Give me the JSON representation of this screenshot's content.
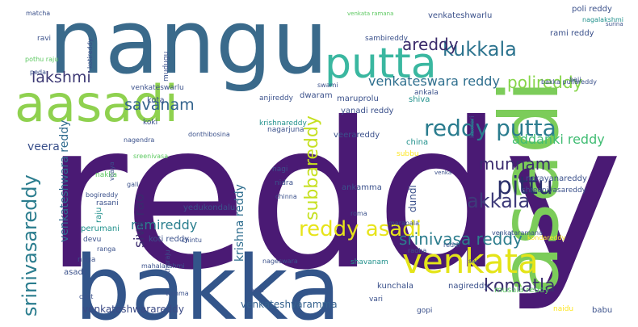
{
  "cloud": {
    "palette": [
      "#440154",
      "#3b528b",
      "#21918c",
      "#5ec962",
      "#fde725"
    ],
    "words": [
      {
        "text": "reddy",
        "color": "#4a1a74"
      },
      {
        "text": "nangu",
        "color": "#3a6a8b"
      },
      {
        "text": "bakka",
        "color": "#33558a"
      },
      {
        "text": "aasadi",
        "color": "#8fd14f"
      },
      {
        "text": "putta",
        "color": "#3ab7a0"
      },
      {
        "text": "asadi",
        "color": "#7ccc5a"
      },
      {
        "text": "venkata",
        "color": "#e4e419"
      },
      {
        "text": "reddy asadi",
        "color": "#e7e41a"
      },
      {
        "text": "lakshmi",
        "color": "#3e3a75"
      },
      {
        "text": "kukkala",
        "color": "#2c738e"
      },
      {
        "text": "reddy putta",
        "color": "#2a7c8e"
      },
      {
        "text": "areddy",
        "color": "#3a2a6a"
      },
      {
        "text": "venkateswara reddy",
        "color": "#2f6f8e"
      },
      {
        "text": "srinivasareddy",
        "color": "#2b7d8e"
      },
      {
        "text": "venkateshwara reddy",
        "color": "#2f6b8e"
      },
      {
        "text": "savanam",
        "color": "#33638d"
      },
      {
        "text": "subbareddy",
        "color": "#c6e020"
      },
      {
        "text": "srinivasa reddy",
        "color": "#2c7d8d"
      },
      {
        "text": "pittu",
        "color": "#2a2f6a"
      },
      {
        "text": "munnam",
        "color": "#3a2a6e"
      },
      {
        "text": "akkala",
        "color": "#3e3b7a"
      },
      {
        "text": "komatla",
        "color": "#3a2f6d"
      },
      {
        "text": "polireddy",
        "color": "#86d549"
      },
      {
        "text": "addanki reddy",
        "color": "#3fbc72"
      },
      {
        "text": "ramireddy",
        "color": "#2a7f8e"
      },
      {
        "text": "siva rao",
        "color": "#3a2a6e"
      },
      {
        "text": "krishna reddy",
        "color": "#2e6d8e"
      },
      {
        "text": "venkateshwarareddy",
        "color": "#3b4a85"
      },
      {
        "text": "venkateshvaramma",
        "color": "#34618d"
      },
      {
        "text": "venkateshwarlu",
        "color": "#3b518b"
      },
      {
        "text": "venkateswarlu",
        "color": "#3b518b"
      },
      {
        "text": "rami reddy",
        "color": "#3b518b"
      },
      {
        "text": "poli reddy",
        "color": "#3b518b"
      },
      {
        "text": "nagalakshmi",
        "color": "#21918c"
      },
      {
        "text": "koti reddy",
        "color": "#3b518b"
      },
      {
        "text": "kota",
        "color": "#3b518b"
      },
      {
        "text": "anjireddy",
        "color": "#3b518b"
      },
      {
        "text": "maruprolu",
        "color": "#3b518b"
      },
      {
        "text": "dwaram",
        "color": "#3b518b"
      },
      {
        "text": "yanadi reddy",
        "color": "#3b518b"
      },
      {
        "text": "shiva",
        "color": "#21918c"
      },
      {
        "text": "china",
        "color": "#21918c"
      },
      {
        "text": "veerareddy",
        "color": "#3b518b"
      },
      {
        "text": "krishnareddy",
        "color": "#21918c"
      },
      {
        "text": "nagi",
        "color": "#3b518b"
      },
      {
        "text": "nidra",
        "color": "#3b518b"
      },
      {
        "text": "rasani",
        "color": "#3b518b"
      },
      {
        "text": "raju",
        "color": "#21918c"
      },
      {
        "text": "nakka",
        "color": "#5ec962"
      },
      {
        "text": "perumani",
        "color": "#21918c"
      },
      {
        "text": "devu",
        "color": "#3b518b"
      },
      {
        "text": "yedukondalu",
        "color": "#3b518b"
      },
      {
        "text": "ankamma",
        "color": "#3b518b"
      },
      {
        "text": "dundi",
        "color": "#3b518b"
      },
      {
        "text": "marapala",
        "color": "#3b518b"
      },
      {
        "text": "narayanareddy",
        "color": "#3b518b"
      },
      {
        "text": "shreenivasareddy",
        "color": "#3b518b"
      },
      {
        "text": "kondareddy",
        "color": "#fde725"
      },
      {
        "text": "reddi",
        "color": "#3b518b"
      },
      {
        "text": "shavanam",
        "color": "#21918c"
      },
      {
        "text": "kunchala",
        "color": "#3b518b"
      },
      {
        "text": "nagireddy",
        "color": "#3b518b"
      },
      {
        "text": "musala reddy",
        "color": "#5ec962"
      },
      {
        "text": "vari",
        "color": "#3b518b"
      },
      {
        "text": "anki",
        "color": "#3b518b"
      },
      {
        "text": "tumma",
        "color": "#3b518b"
      },
      {
        "text": "asadi",
        "color": "#3b518b"
      },
      {
        "text": "naidu",
        "color": "#fde725"
      },
      {
        "text": "babu",
        "color": "#3b518b"
      },
      {
        "text": "gopi",
        "color": "#3b518b"
      },
      {
        "text": "veera",
        "color": "#3b518b"
      },
      {
        "text": "ravi",
        "color": "#3b518b"
      },
      {
        "text": "matcha",
        "color": "#3b518b"
      },
      {
        "text": "sambireddy",
        "color": "#3b518b"
      },
      {
        "text": "venkata ramana",
        "color": "#5ec962"
      },
      {
        "text": "ankala",
        "color": "#3b518b"
      },
      {
        "text": "bakka pullareddy",
        "color": "#3b518b"
      },
      {
        "text": "pothu raju",
        "color": "#5ec962"
      },
      {
        "text": "kotireddy",
        "color": "#3b518b"
      },
      {
        "text": "mudugu",
        "color": "#3b518b"
      },
      {
        "text": "nagarjuna",
        "color": "#3b518b"
      },
      {
        "text": "koki",
        "color": "#3b518b"
      },
      {
        "text": "donthibosina",
        "color": "#3b518b"
      },
      {
        "text": "nagendra",
        "color": "#3b518b"
      },
      {
        "text": "sreenivasa",
        "color": "#5ec962"
      },
      {
        "text": "subbu",
        "color": "#fde725"
      },
      {
        "text": "kumari",
        "color": "#3b518b"
      },
      {
        "text": "chinna",
        "color": "#3b518b"
      },
      {
        "text": "roma",
        "color": "#3b518b"
      },
      {
        "text": "ranga",
        "color": "#3b518b"
      },
      {
        "text": "naga",
        "color": "#3b518b"
      },
      {
        "text": "chintu",
        "color": "#3b518b"
      },
      {
        "text": "mahalakshmi",
        "color": "#3b518b"
      },
      {
        "text": "pothuraju",
        "color": "#3b518b"
      },
      {
        "text": "nageswara",
        "color": "#3b518b"
      },
      {
        "text": "coot",
        "color": "#3b518b"
      },
      {
        "text": "gali",
        "color": "#3b518b"
      },
      {
        "text": "bogireddy",
        "color": "#3b518b"
      },
      {
        "text": "vijaya",
        "color": "#3b518b"
      },
      {
        "text": "peda",
        "color": "#3b518b"
      },
      {
        "text": "swami",
        "color": "#3b518b"
      },
      {
        "text": "baji",
        "color": "#3b518b"
      },
      {
        "text": "surina",
        "color": "#3b518b"
      },
      {
        "text": "sai",
        "color": "#3b518b"
      },
      {
        "text": "radha",
        "color": "#3b518b"
      },
      {
        "text": "venka",
        "color": "#3b518b"
      },
      {
        "text": "venkataramana",
        "color": "#3b518b"
      }
    ]
  }
}
